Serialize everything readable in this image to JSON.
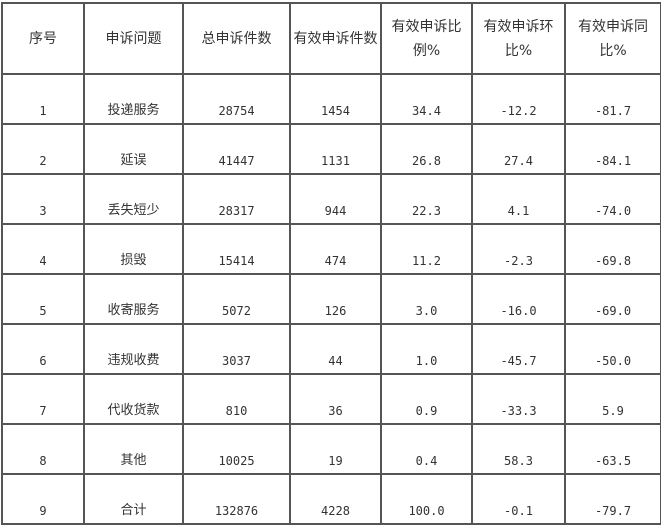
{
  "headers": [
    "序号",
    "申诉问题",
    "总申诉件数",
    "有效申诉件数",
    "有效申诉比例%",
    "有效申诉环比%",
    "有效申诉同比%"
  ],
  "rows": [
    [
      "1",
      "投递服务",
      "28754",
      "1454",
      "34.4",
      "-12.2",
      "-81.7"
    ],
    [
      "2",
      "延误",
      "41447",
      "1131",
      "26.8",
      "27.4",
      "-84.1"
    ],
    [
      "3",
      "丢失短少",
      "28317",
      "944",
      "22.3",
      "4.1",
      "-74.0"
    ],
    [
      "4",
      "损毁",
      "15414",
      "474",
      "11.2",
      "-2.3",
      "-69.8"
    ],
    [
      "5",
      "收寄服务",
      "5072",
      "126",
      "3.0",
      "-16.0",
      "-69.0"
    ],
    [
      "6",
      "违规收费",
      "3037",
      "44",
      "1.0",
      "-45.7",
      "-50.0"
    ],
    [
      "7",
      "代收货款",
      "810",
      "36",
      "0.9",
      "-33.3",
      "5.9"
    ],
    [
      "8",
      "其他",
      "10025",
      "19",
      "0.4",
      "58.3",
      "-63.5"
    ],
    [
      "9",
      "合计",
      "132876",
      "4228",
      "100.0",
      "-0.1",
      "-79.7"
    ]
  ]
}
